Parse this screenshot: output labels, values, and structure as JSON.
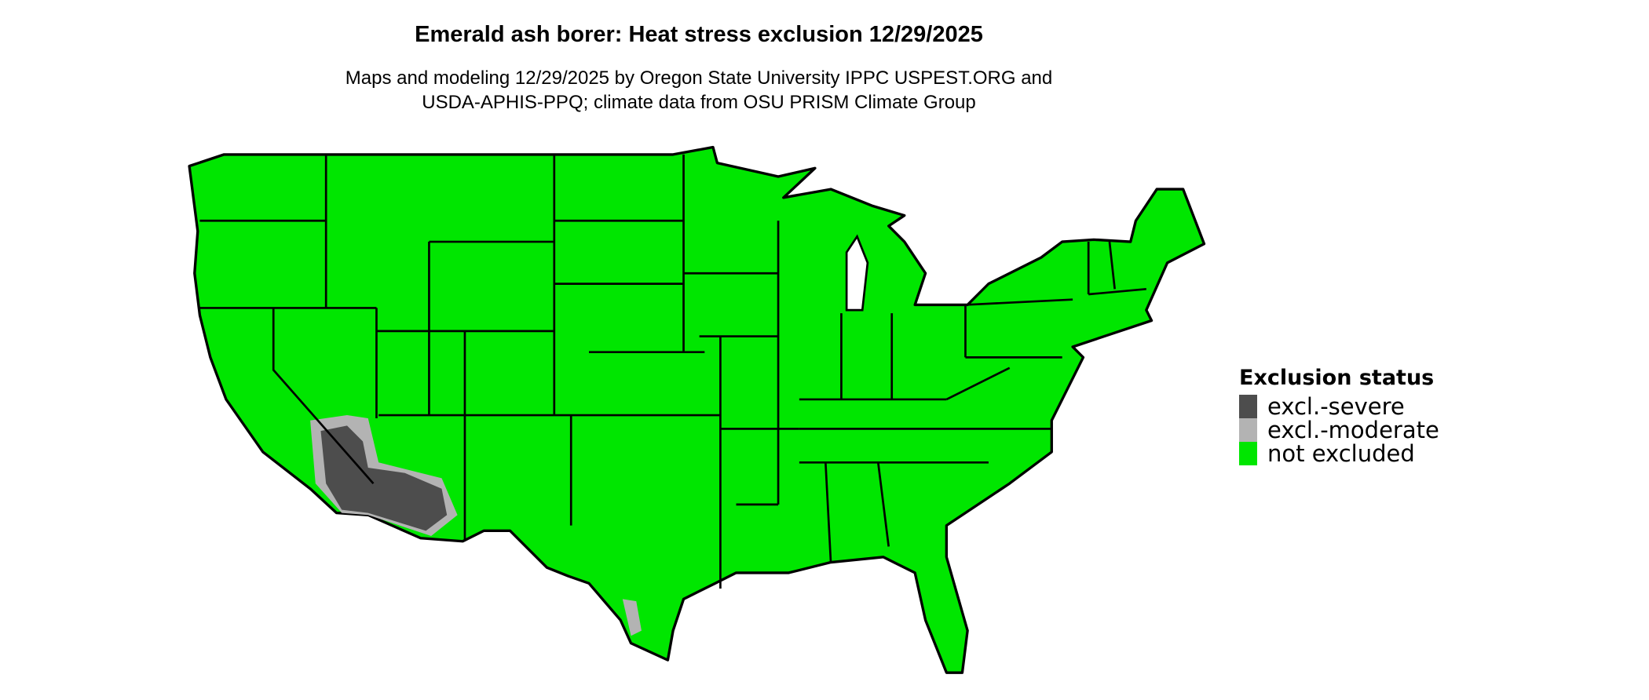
{
  "title": "Emerald ash borer: Heat stress exclusion 12/29/2025",
  "subtitle": [
    "Maps and modeling 12/29/2025 by Oregon State University IPPC USPEST.ORG and",
    "USDA-APHIS-PPQ; climate data from OSU PRISM Climate Group"
  ],
  "legend": {
    "title": "Exclusion status",
    "items": [
      {
        "label": "excl.-severe",
        "color": "#4d4d4d"
      },
      {
        "label": "excl.-moderate",
        "color": "#b3b3b3"
      },
      {
        "label": "not excluded",
        "color": "#00e600"
      }
    ]
  },
  "map": {
    "region": "Contiguous United States",
    "base_color": "#00e600",
    "border_color": "#000000"
  }
}
